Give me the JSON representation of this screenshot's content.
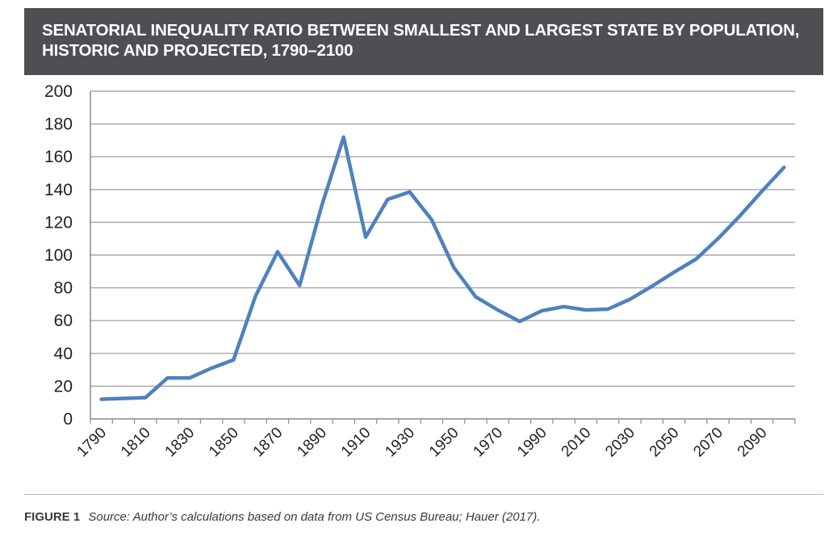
{
  "header": {
    "title": "SENATORIAL INEQUALITY RATIO BETWEEN SMALLEST AND LARGEST STATE BY POPULATION, HISTORIC AND PROJECTED, 1790–2100"
  },
  "caption": {
    "figure_label": "FIGURE 1",
    "source": "Source: Author’s calculations based on data from US Census Bureau; Hauer (2017)."
  },
  "colors": {
    "header_bg": "#4d4f53",
    "line": "#4f81bd",
    "grid": "#a6a6a6"
  },
  "chart_data": {
    "type": "line",
    "title": "SENATORIAL INEQUALITY RATIO BETWEEN SMALLEST AND LARGEST STATE BY POPULATION, HISTORIC AND PROJECTED, 1790–2100",
    "xlabel": "",
    "ylabel": "",
    "ylim": [
      0,
      200
    ],
    "yticks": [
      0,
      20,
      40,
      60,
      80,
      100,
      120,
      140,
      160,
      180,
      200
    ],
    "xtick_labels": [
      "1790",
      "1810",
      "1830",
      "1850",
      "1870",
      "1890",
      "1910",
      "1930",
      "1950",
      "1970",
      "1990",
      "2010",
      "2030",
      "2050",
      "2070",
      "2090"
    ],
    "grid": true,
    "legend": "none",
    "x": [
      1790,
      1800,
      1810,
      1820,
      1830,
      1840,
      1850,
      1860,
      1870,
      1880,
      1890,
      1900,
      1910,
      1920,
      1930,
      1940,
      1950,
      1960,
      1970,
      1980,
      1990,
      2000,
      2010,
      2020,
      2030,
      2040,
      2050,
      2060,
      2070,
      2080,
      2090,
      2100
    ],
    "series": [
      {
        "values": [
          12,
          12.5,
          13,
          25,
          25,
          31,
          36,
          75,
          102,
          81.5,
          130,
          172,
          111,
          134,
          138.5,
          121.5,
          92.5,
          74.5,
          66.5,
          59.5,
          66,
          68.5,
          66.5,
          67,
          73,
          81,
          89.5,
          97.5,
          110,
          124,
          139,
          153.5
        ]
      }
    ]
  }
}
